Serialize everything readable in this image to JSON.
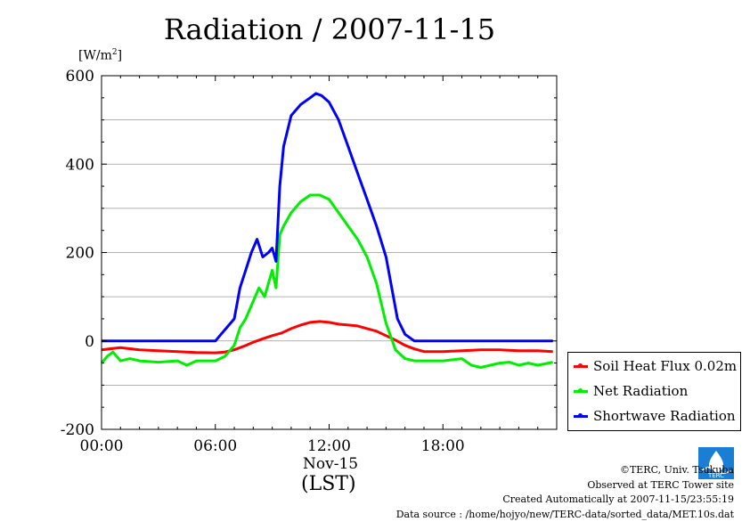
{
  "header": {
    "title": "Radiation / 2007-11-15",
    "unit_base": "[W/m",
    "unit_sup": "2",
    "unit_close": "]"
  },
  "axis": {
    "date_label": "Nov-15",
    "xlabel": "(LST)"
  },
  "legend": {
    "items": [
      {
        "label": "Soil Heat Flux 0.02m",
        "color": "#ff0000"
      },
      {
        "label": "Net Radiation",
        "color": "#00ee00"
      },
      {
        "label": "Shortwave Radiation",
        "color": "#0000ff"
      }
    ]
  },
  "credits": {
    "copyright": "©TERC, Univ. Tsukuba",
    "site": "Observed at TERC Tower site",
    "created": "Created Automatically at 2007-11-15/23:55:19",
    "source": "Data source : /home/hojyo/new/TERC-data/sorted_data/MET.10s.dat"
  },
  "logo": {
    "text": "TERC",
    "icon": "terc-logo-icon",
    "color": "#1a7fd4"
  },
  "chart_data": {
    "type": "line",
    "title": "Radiation / 2007-11-15",
    "ylabel": "[W/m2]",
    "xlabel": "(LST)",
    "xlim": [
      0,
      24
    ],
    "ylim": [
      -200,
      600
    ],
    "xticks": [
      {
        "value": 0,
        "label": "00:00"
      },
      {
        "value": 6,
        "label": "06:00"
      },
      {
        "value": 12,
        "label": "12:00"
      },
      {
        "value": 18,
        "label": "18:00"
      }
    ],
    "yticks": [
      {
        "value": -200,
        "label": "-200"
      },
      {
        "value": 0,
        "label": "0"
      },
      {
        "value": 200,
        "label": "200"
      },
      {
        "value": 400,
        "label": "400"
      },
      {
        "value": 600,
        "label": "600"
      }
    ],
    "grid": true,
    "legend_position": "bottom-right outside",
    "series": [
      {
        "name": "Soil Heat Flux 0.02m",
        "color": "#ff0000",
        "x": [
          0,
          1,
          2,
          3,
          4,
          5,
          6,
          6.5,
          7,
          7.5,
          8,
          8.5,
          9,
          9.5,
          10,
          10.5,
          11,
          11.5,
          12,
          12.5,
          13,
          13.5,
          14,
          14.5,
          15,
          15.5,
          16,
          16.5,
          17,
          18,
          19,
          20,
          21,
          22,
          23,
          23.8
        ],
        "y": [
          -20,
          -15,
          -20,
          -22,
          -24,
          -26,
          -27,
          -25,
          -20,
          -12,
          -3,
          5,
          12,
          18,
          28,
          36,
          42,
          44,
          42,
          38,
          36,
          34,
          28,
          22,
          12,
          2,
          -10,
          -18,
          -24,
          -24,
          -22,
          -20,
          -20,
          -22,
          -22,
          -24
        ]
      },
      {
        "name": "Net Radiation",
        "color": "#00ee00",
        "x": [
          0,
          0.3,
          0.6,
          1,
          1.5,
          2,
          3,
          4,
          4.5,
          5,
          6,
          6.5,
          7,
          7.3,
          7.6,
          8,
          8.3,
          8.6,
          9,
          9.2,
          9.4,
          9.6,
          10,
          10.5,
          11,
          11.5,
          12,
          12.5,
          13,
          13.5,
          14,
          14.5,
          15,
          15.5,
          16,
          16.5,
          17,
          18,
          19,
          19.5,
          20,
          20.5,
          21,
          21.5,
          22,
          22.5,
          23,
          23.8
        ],
        "y": [
          -50,
          -35,
          -25,
          -45,
          -40,
          -45,
          -48,
          -45,
          -55,
          -45,
          -45,
          -35,
          -10,
          30,
          50,
          90,
          120,
          100,
          160,
          120,
          240,
          260,
          290,
          315,
          330,
          330,
          320,
          290,
          260,
          230,
          190,
          130,
          40,
          -20,
          -40,
          -45,
          -45,
          -45,
          -40,
          -55,
          -60,
          -55,
          -50,
          -48,
          -55,
          -50,
          -55,
          -48
        ]
      },
      {
        "name": "Shortwave Radiation",
        "color": "#0000ff",
        "x": [
          0,
          1,
          2,
          3,
          4,
          5,
          6,
          6.3,
          6.6,
          7,
          7.3,
          7.6,
          7.9,
          8.2,
          8.5,
          8.8,
          9,
          9.2,
          9.4,
          9.6,
          10,
          10.5,
          11,
          11.3,
          11.6,
          12,
          12.5,
          13,
          13.5,
          14,
          14.5,
          15,
          15.3,
          15.6,
          16,
          16.5,
          17,
          18,
          19,
          20,
          21,
          22,
          23,
          23.8
        ],
        "y": [
          0,
          0,
          0,
          0,
          0,
          0,
          0,
          15,
          30,
          50,
          120,
          160,
          200,
          230,
          190,
          200,
          210,
          180,
          350,
          440,
          510,
          535,
          550,
          560,
          555,
          540,
          500,
          440,
          380,
          320,
          260,
          190,
          120,
          50,
          15,
          0,
          0,
          0,
          0,
          0,
          0,
          0,
          0,
          0
        ]
      }
    ]
  }
}
